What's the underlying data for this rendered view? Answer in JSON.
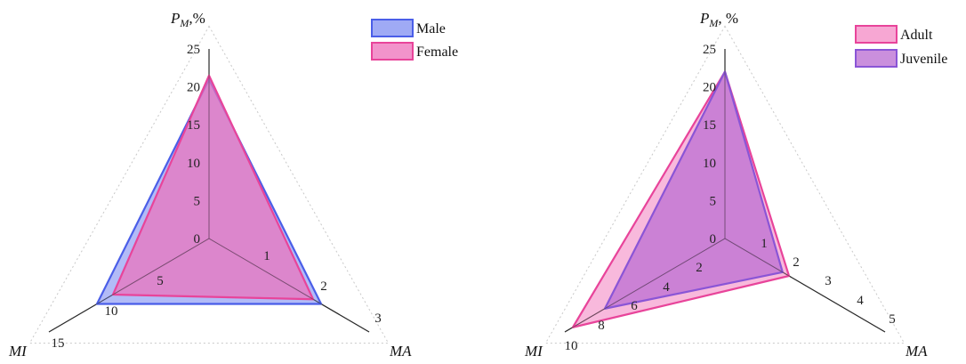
{
  "chart_data": [
    {
      "type": "radar",
      "axes": [
        {
          "key": "pm",
          "label_main": "P",
          "label_sub": "M",
          "label_suffix": ",%",
          "max": 25,
          "ticks": [
            "0",
            "5",
            "10",
            "15",
            "20",
            "25"
          ]
        },
        {
          "key": "ma",
          "label_main": "MA",
          "max": 3,
          "ticks": [
            "1",
            "2",
            "3"
          ]
        },
        {
          "key": "mi",
          "label_main": "MI",
          "max": 15,
          "ticks": [
            "5",
            "10",
            "15"
          ]
        }
      ],
      "series": [
        {
          "name": "Male",
          "values": {
            "pm": 21,
            "ma": 2.1,
            "mi": 10.5
          },
          "fill": "#7f8ef2",
          "stroke": "#4a5ee8"
        },
        {
          "name": "Female",
          "values": {
            "pm": 21.5,
            "ma": 1.95,
            "mi": 9.0
          },
          "fill": "#ee6fb9",
          "stroke": "#e8449a"
        }
      ],
      "legend_position": "top-right"
    },
    {
      "type": "radar",
      "axes": [
        {
          "key": "pm",
          "label_main": "P",
          "label_sub": "M",
          "label_suffix": ", %",
          "max": 25,
          "ticks": [
            "0",
            "5",
            "10",
            "15",
            "20",
            "25"
          ]
        },
        {
          "key": "ma",
          "label_main": "MA",
          "max": 5,
          "ticks": [
            "1",
            "2",
            "3",
            "4",
            "5"
          ]
        },
        {
          "key": "mi",
          "label_main": "MI",
          "max": 10,
          "ticks": [
            "2",
            "4",
            "6",
            "8",
            "10"
          ]
        }
      ],
      "series": [
        {
          "name": "Adult",
          "values": {
            "pm": 22,
            "ma": 2.0,
            "mi": 9.5
          },
          "fill": "#f48ac4",
          "stroke": "#e8449a"
        },
        {
          "name": "Juvenile",
          "values": {
            "pm": 22,
            "ma": 1.8,
            "mi": 7.5
          },
          "fill": "#b86ad2",
          "stroke": "#8a55d6"
        }
      ],
      "legend_position": "top-right"
    }
  ]
}
